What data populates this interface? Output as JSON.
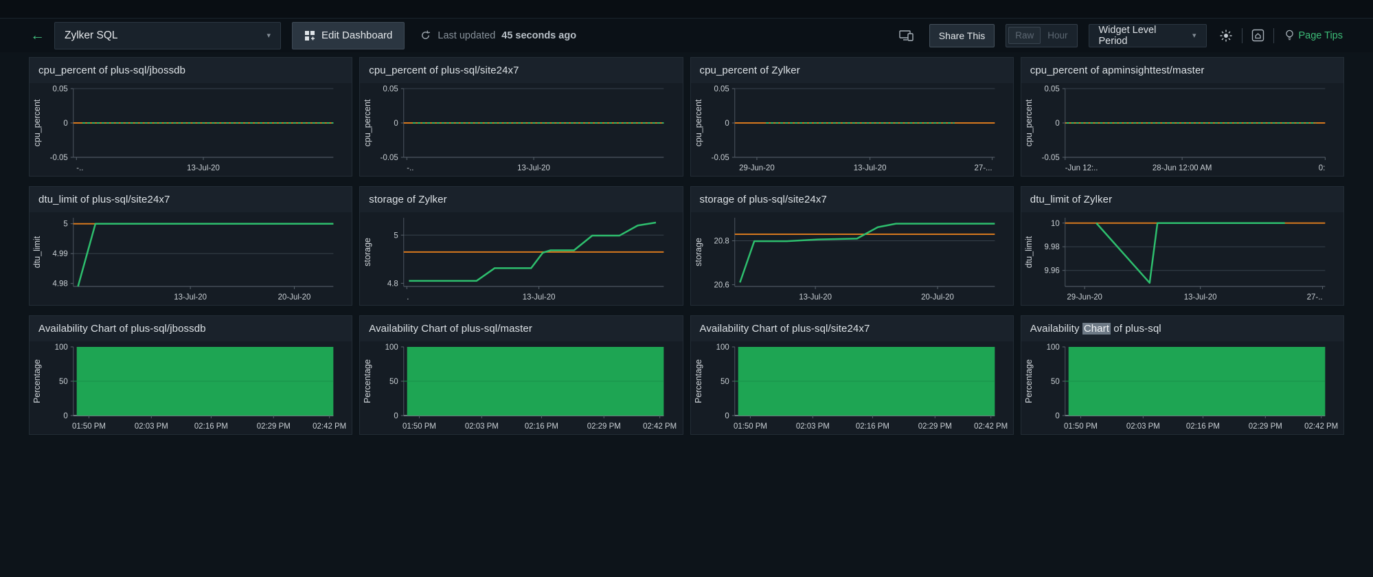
{
  "top_bar": {
    "back_icon": "arrow-left",
    "dashboard_select": {
      "value": "Zylker SQL"
    },
    "edit_dashboard": {
      "label": "Edit Dashboard"
    },
    "last_updated": {
      "prefix": "Last updated",
      "value": "45 seconds ago"
    },
    "share_this_label": "Share This",
    "time_granularity": {
      "raw": "Raw",
      "hour": "Hour"
    },
    "widget_level_period": {
      "label": "Widget Level Period"
    },
    "page_tips": {
      "label": "Page Tips"
    }
  },
  "colors": {
    "page_bg": "#0d141a",
    "card_bg": "#151c24",
    "card_header_bg": "#1a222b",
    "accent_green": "#3dbd78",
    "series_green": "#2ebf6e",
    "series_orange": "#d8791e",
    "availability_fill": "#1ea553",
    "grid_line": "#37414b",
    "axis_line": "#4c5660"
  },
  "chart_data": [
    {
      "title": "cpu_percent of plus-sql/jbossdb",
      "type": "line",
      "ylabel": "cpu_percent",
      "ylim": [
        -0.05,
        0.05
      ],
      "yticks": [
        {
          "v": 0.05,
          "label": "0.05",
          "grid": true
        },
        {
          "v": 0,
          "label": "0"
        },
        {
          "v": -0.05,
          "label": "-0.05"
        }
      ],
      "xticks": [
        {
          "pos": 0.012,
          "label": "-..",
          "anchor": "start"
        },
        {
          "pos": 0.5,
          "label": "13-Jul-20"
        }
      ],
      "series": [
        {
          "name": "limit",
          "color": "#d8791e",
          "width": 2,
          "points": [
            [
              0,
              0
            ],
            [
              1,
              0
            ]
          ]
        },
        {
          "name": "cpu_percent",
          "color": "#2ebf6e",
          "width": 2,
          "dash": "4,3",
          "points": [
            [
              0.035,
              0
            ],
            [
              1,
              0
            ]
          ]
        }
      ]
    },
    {
      "title": "cpu_percent of plus-sql/site24x7",
      "type": "line",
      "ylabel": "cpu_percent",
      "ylim": [
        -0.05,
        0.05
      ],
      "yticks": [
        {
          "v": 0.05,
          "label": "0.05",
          "grid": true
        },
        {
          "v": 0,
          "label": "0"
        },
        {
          "v": -0.05,
          "label": "-0.05"
        }
      ],
      "xticks": [
        {
          "pos": 0.012,
          "label": "-..",
          "anchor": "start"
        },
        {
          "pos": 0.5,
          "label": "13-Jul-20"
        }
      ],
      "series": [
        {
          "name": "limit",
          "color": "#d8791e",
          "width": 2,
          "points": [
            [
              0,
              0
            ],
            [
              1,
              0
            ]
          ]
        },
        {
          "name": "cpu_percent",
          "color": "#2ebf6e",
          "width": 2,
          "dash": "4,3",
          "points": [
            [
              0.035,
              0
            ],
            [
              1,
              0
            ]
          ]
        }
      ]
    },
    {
      "title": "cpu_percent of Zylker",
      "type": "line",
      "ylabel": "cpu_percent",
      "ylim": [
        -0.05,
        0.05
      ],
      "yticks": [
        {
          "v": 0.05,
          "label": "0.05",
          "grid": true
        },
        {
          "v": 0,
          "label": "0"
        },
        {
          "v": -0.05,
          "label": "-0.05"
        }
      ],
      "xticks": [
        {
          "pos": 0.085,
          "label": "29-Jun-20"
        },
        {
          "pos": 0.52,
          "label": "13-Jul-20"
        },
        {
          "pos": 0.99,
          "label": "27-...",
          "anchor": "end"
        }
      ],
      "series": [
        {
          "name": "limit",
          "color": "#d8791e",
          "width": 2,
          "points": [
            [
              0,
              0
            ],
            [
              1,
              0
            ]
          ]
        },
        {
          "name": "cpu_percent",
          "color": "#2ebf6e",
          "width": 2,
          "dash": "4,3",
          "points": [
            [
              0.12,
              0
            ],
            [
              0.845,
              0
            ]
          ]
        }
      ]
    },
    {
      "title": "cpu_percent of apminsighttest/master",
      "type": "line",
      "ylabel": "cpu_percent",
      "ylim": [
        -0.05,
        0.05
      ],
      "yticks": [
        {
          "v": 0.05,
          "label": "0.05",
          "grid": true
        },
        {
          "v": 0,
          "label": "0"
        },
        {
          "v": -0.05,
          "label": "-0.05"
        }
      ],
      "xticks": [
        {
          "pos": 0.0,
          "label": "-Jun 12:..",
          "anchor": "start"
        },
        {
          "pos": 0.45,
          "label": "28-Jun 12:00 AM"
        },
        {
          "pos": 1,
          "label": "0:",
          "anchor": "end"
        }
      ],
      "series": [
        {
          "name": "limit",
          "color": "#d8791e",
          "width": 2,
          "points": [
            [
              0,
              0
            ],
            [
              1,
              0
            ]
          ]
        },
        {
          "name": "cpu_percent",
          "color": "#2ebf6e",
          "width": 2,
          "dash": "4,3",
          "points": [
            [
              0.005,
              0
            ],
            [
              0.965,
              0
            ]
          ]
        }
      ]
    },
    {
      "title": "dtu_limit of plus-sql/site24x7",
      "type": "line",
      "ylabel": "dtu_limit",
      "ylim": [
        4.979,
        5.002
      ],
      "yticks": [
        {
          "v": 5,
          "label": "5"
        },
        {
          "v": 4.99,
          "label": "4.99",
          "grid": true
        },
        {
          "v": 4.98,
          "label": "4.98"
        }
      ],
      "xticks": [
        {
          "pos": 0.45,
          "label": "13-Jul-20"
        },
        {
          "pos": 0.85,
          "label": "20-Jul-20"
        }
      ],
      "series": [
        {
          "name": "limit",
          "color": "#d8791e",
          "width": 2,
          "points": [
            [
              0,
              5
            ],
            [
              1,
              5
            ]
          ]
        },
        {
          "name": "dtu_limit",
          "color": "#2ebf6e",
          "width": 2.5,
          "points": [
            [
              0.018,
              4.979
            ],
            [
              0.085,
              5
            ],
            [
              1,
              5
            ]
          ]
        }
      ]
    },
    {
      "title": "storage of Zylker",
      "type": "line",
      "ylabel": "storage",
      "ylim": [
        4.787,
        5.072
      ],
      "yticks": [
        {
          "v": 5,
          "label": "5",
          "grid": true
        },
        {
          "v": 4.8,
          "label": "4.8"
        }
      ],
      "xticks": [
        {
          "pos": 0.012,
          "label": ".",
          "anchor": "start"
        },
        {
          "pos": 0.52,
          "label": "13-Jul-20"
        }
      ],
      "series": [
        {
          "name": "limit",
          "color": "#d8791e",
          "width": 2,
          "points": [
            [
              0,
              4.93
            ],
            [
              1,
              4.93
            ]
          ]
        },
        {
          "name": "storage",
          "color": "#2ebf6e",
          "width": 2.5,
          "points": [
            [
              0.02,
              4.81
            ],
            [
              0.28,
              4.81
            ],
            [
              0.35,
              4.863
            ],
            [
              0.49,
              4.863
            ],
            [
              0.535,
              4.927
            ],
            [
              0.565,
              4.937
            ],
            [
              0.655,
              4.937
            ],
            [
              0.725,
              4.998
            ],
            [
              0.83,
              4.998
            ],
            [
              0.9,
              5.04
            ],
            [
              0.97,
              5.052
            ]
          ]
        }
      ]
    },
    {
      "title": "storage of plus-sql/site24x7",
      "type": "line",
      "ylabel": "storage",
      "ylim": [
        20.592,
        20.905
      ],
      "yticks": [
        {
          "v": 20.8,
          "label": "20.8",
          "grid": true
        },
        {
          "v": 20.6,
          "label": "20.6"
        }
      ],
      "xticks": [
        {
          "pos": 0.31,
          "label": "13-Jul-20"
        },
        {
          "pos": 0.78,
          "label": "20-Jul-20"
        }
      ],
      "series": [
        {
          "name": "limit",
          "color": "#d8791e",
          "width": 2,
          "points": [
            [
              0,
              20.83
            ],
            [
              1,
              20.83
            ]
          ]
        },
        {
          "name": "storage",
          "color": "#2ebf6e",
          "width": 2.5,
          "points": [
            [
              0.02,
              20.61
            ],
            [
              0.075,
              20.798
            ],
            [
              0.2,
              20.798
            ],
            [
              0.32,
              20.806
            ],
            [
              0.47,
              20.81
            ],
            [
              0.55,
              20.862
            ],
            [
              0.62,
              20.878
            ],
            [
              1,
              20.878
            ]
          ]
        }
      ]
    },
    {
      "title": "dtu_limit of Zylker",
      "type": "line",
      "ylabel": "dtu_limit",
      "ylim": [
        9.9465,
        10.0045
      ],
      "yticks": [
        {
          "v": 10,
          "label": "10"
        },
        {
          "v": 9.98,
          "label": "9.98",
          "grid": true
        },
        {
          "v": 9.96,
          "label": "9.96",
          "grid": true
        }
      ],
      "xticks": [
        {
          "pos": 0.075,
          "label": "29-Jun-20"
        },
        {
          "pos": 0.52,
          "label": "13-Jul-20"
        },
        {
          "pos": 0.99,
          "label": "27-..",
          "anchor": "end"
        }
      ],
      "series": [
        {
          "name": "limit",
          "color": "#d8791e",
          "width": 2,
          "points": [
            [
              0,
              10
            ],
            [
              1,
              10
            ]
          ]
        },
        {
          "name": "dtu_limit",
          "color": "#2ebf6e",
          "width": 2.5,
          "points": [
            [
              0.12,
              10
            ],
            [
              0.325,
              9.9495
            ],
            [
              0.355,
              10
            ],
            [
              0.845,
              10
            ]
          ]
        }
      ]
    },
    {
      "title": "Availability Chart of plus-sql/jbossdb",
      "type": "area",
      "ylabel": "Percentage",
      "ylim": [
        0,
        100
      ],
      "yticks": [
        {
          "v": 100,
          "label": "100"
        },
        {
          "v": 50,
          "label": "50",
          "grid_over": true
        },
        {
          "v": 0,
          "label": "0"
        }
      ],
      "xticks": [
        {
          "pos": 0.06,
          "label": "01:50 PM"
        },
        {
          "pos": 0.3,
          "label": "02:03 PM"
        },
        {
          "pos": 0.53,
          "label": "02:16 PM"
        },
        {
          "pos": 0.77,
          "label": "02:29 PM"
        },
        {
          "pos": 0.985,
          "label": "02:42 PM"
        }
      ],
      "series": [
        {
          "name": "availability",
          "color": "#1ea553",
          "fill": true,
          "points": [
            [
              0.013,
              100
            ],
            [
              1,
              100
            ]
          ]
        }
      ]
    },
    {
      "title": "Availability Chart of plus-sql/master",
      "type": "area",
      "ylabel": "Percentage",
      "ylim": [
        0,
        100
      ],
      "yticks": [
        {
          "v": 100,
          "label": "100"
        },
        {
          "v": 50,
          "label": "50",
          "grid_over": true
        },
        {
          "v": 0,
          "label": "0"
        }
      ],
      "xticks": [
        {
          "pos": 0.06,
          "label": "01:50 PM"
        },
        {
          "pos": 0.3,
          "label": "02:03 PM"
        },
        {
          "pos": 0.53,
          "label": "02:16 PM"
        },
        {
          "pos": 0.77,
          "label": "02:29 PM"
        },
        {
          "pos": 0.985,
          "label": "02:42 PM"
        }
      ],
      "series": [
        {
          "name": "availability",
          "color": "#1ea553",
          "fill": true,
          "points": [
            [
              0.013,
              100
            ],
            [
              1,
              100
            ]
          ]
        }
      ]
    },
    {
      "title": "Availability Chart of plus-sql/site24x7",
      "type": "area",
      "ylabel": "Percentage",
      "ylim": [
        0,
        100
      ],
      "yticks": [
        {
          "v": 100,
          "label": "100"
        },
        {
          "v": 50,
          "label": "50",
          "grid_over": true
        },
        {
          "v": 0,
          "label": "0"
        }
      ],
      "xticks": [
        {
          "pos": 0.06,
          "label": "01:50 PM"
        },
        {
          "pos": 0.3,
          "label": "02:03 PM"
        },
        {
          "pos": 0.53,
          "label": "02:16 PM"
        },
        {
          "pos": 0.77,
          "label": "02:29 PM"
        },
        {
          "pos": 0.985,
          "label": "02:42 PM"
        }
      ],
      "series": [
        {
          "name": "availability",
          "color": "#1ea553",
          "fill": true,
          "points": [
            [
              0.013,
              100
            ],
            [
              1,
              100
            ]
          ]
        }
      ]
    },
    {
      "title": "Availability Chart of plus-sql",
      "type": "area",
      "ylabel": "Percentage",
      "title_parts": {
        "pre": "Availability ",
        "highlight": "Chart",
        "post": " of plus-sql"
      },
      "ylim": [
        0,
        100
      ],
      "yticks": [
        {
          "v": 100,
          "label": "100"
        },
        {
          "v": 50,
          "label": "50",
          "grid_over": true
        },
        {
          "v": 0,
          "label": "0"
        }
      ],
      "xticks": [
        {
          "pos": 0.06,
          "label": "01:50 PM"
        },
        {
          "pos": 0.3,
          "label": "02:03 PM"
        },
        {
          "pos": 0.53,
          "label": "02:16 PM"
        },
        {
          "pos": 0.77,
          "label": "02:29 PM"
        },
        {
          "pos": 0.985,
          "label": "02:42 PM"
        }
      ],
      "series": [
        {
          "name": "availability",
          "color": "#1ea553",
          "fill": true,
          "points": [
            [
              0.013,
              100
            ],
            [
              1,
              100
            ]
          ]
        }
      ]
    }
  ]
}
